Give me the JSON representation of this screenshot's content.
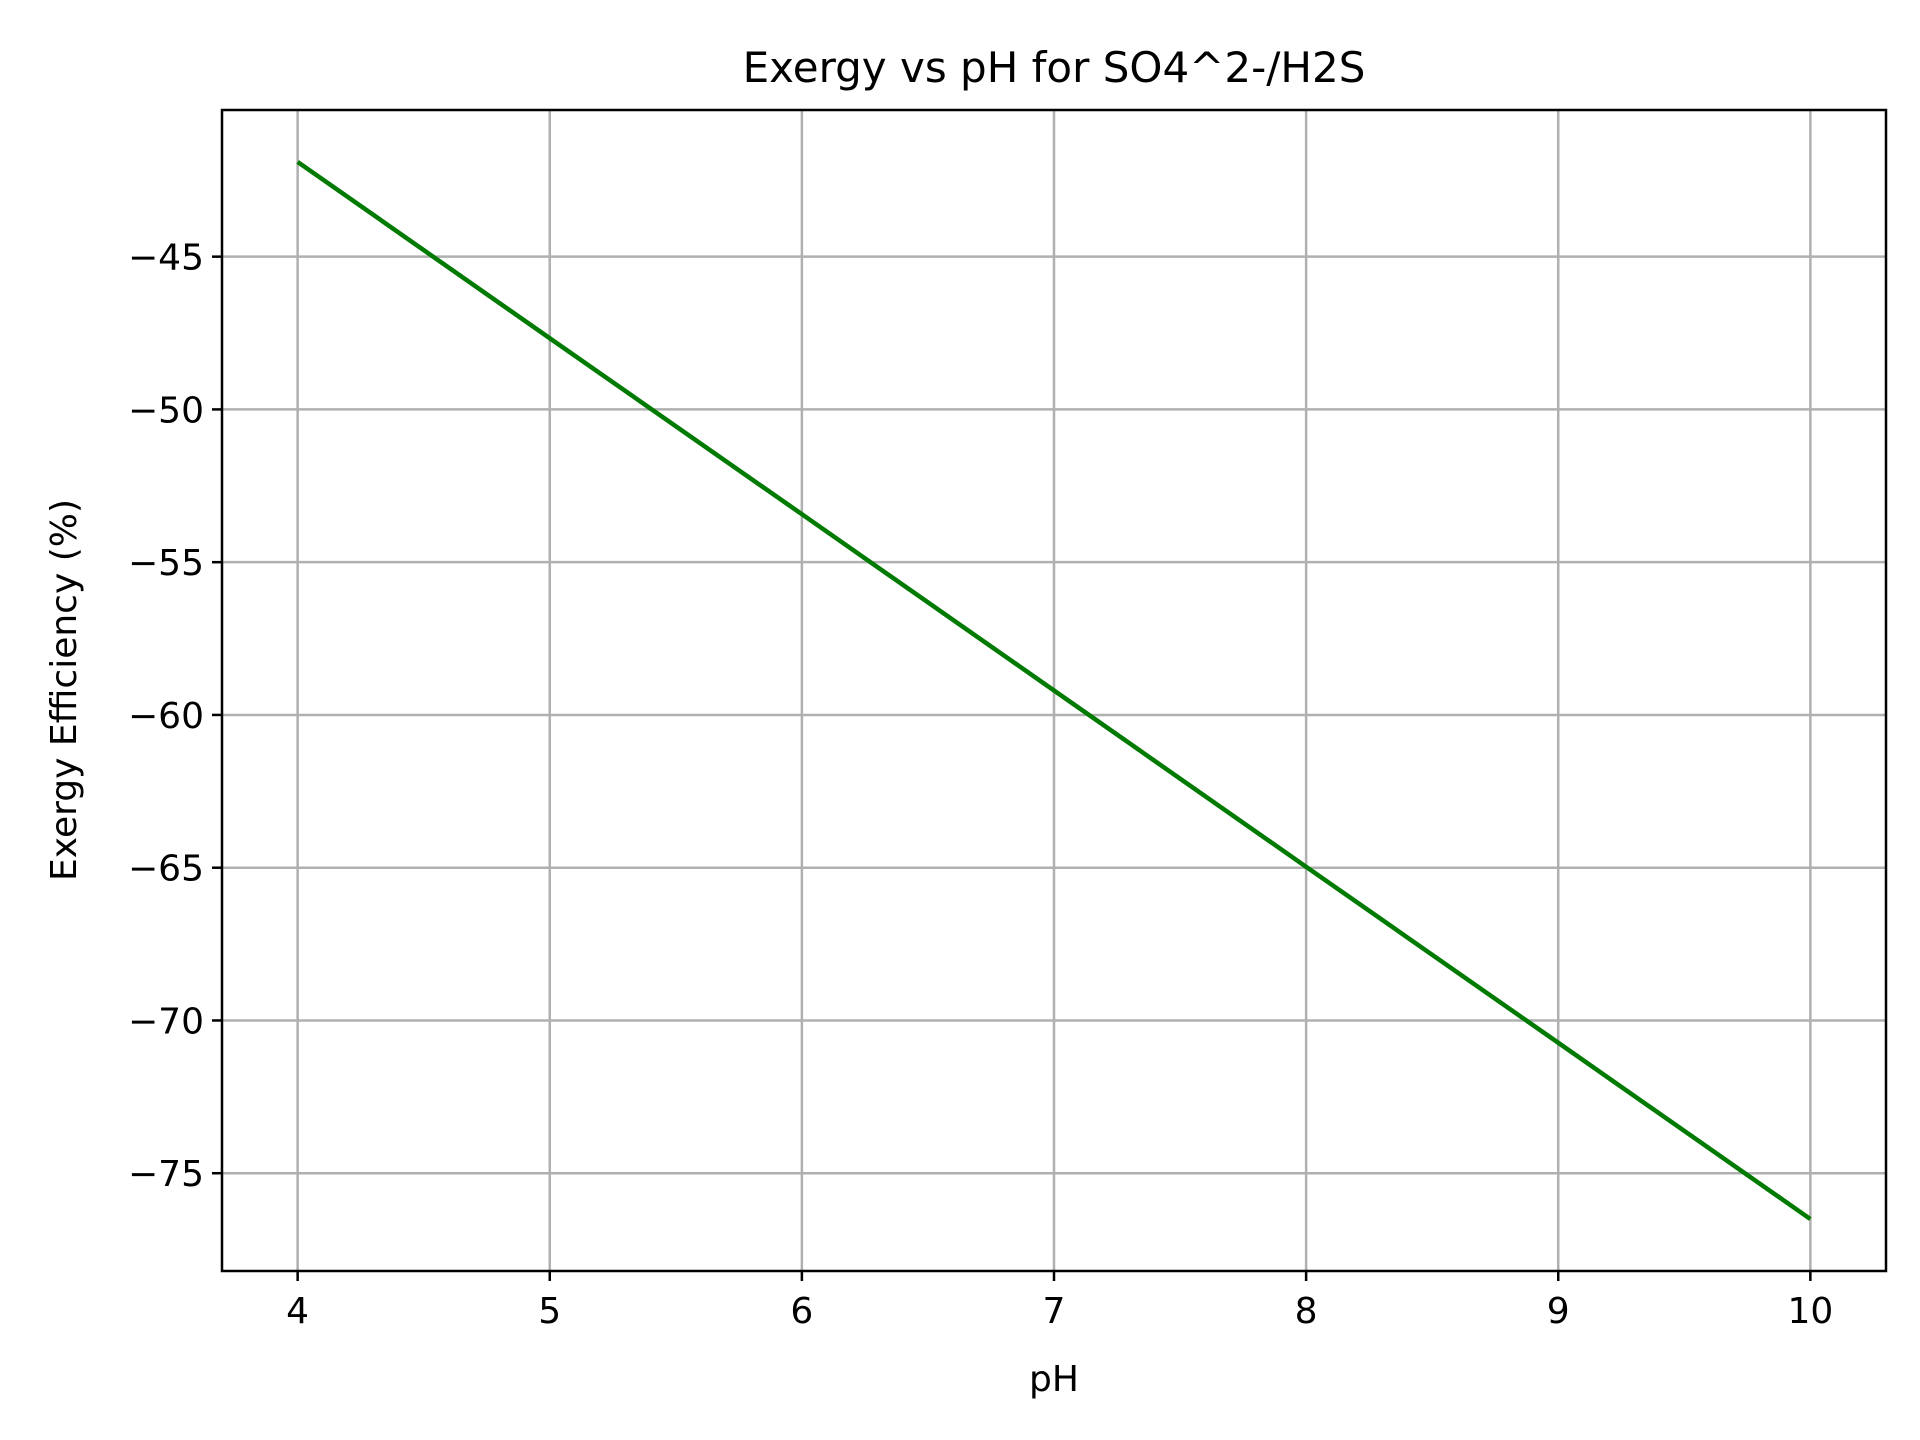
{
  "chart_data": {
    "type": "line",
    "title": "Exergy vs pH for SO4^2-/H2S",
    "xlabel": "pH",
    "ylabel": "Exergy Efficiency (%)",
    "xlim": [
      3.7,
      10.3
    ],
    "ylim": [
      -78.2,
      -40.2
    ],
    "xticks": [
      4,
      5,
      6,
      7,
      8,
      9,
      10
    ],
    "xtick_labels": [
      "4",
      "5",
      "6",
      "7",
      "8",
      "9",
      "10"
    ],
    "yticks": [
      -75,
      -70,
      -65,
      -60,
      -55,
      -50,
      -45
    ],
    "ytick_labels": [
      "−75",
      "−70",
      "−65",
      "−60",
      "−55",
      "−50",
      "−45"
    ],
    "grid": true,
    "series": [
      {
        "color": "#007a00",
        "x": [
          4,
          5,
          6,
          7,
          8,
          9,
          10
        ],
        "y": [
          -41.9,
          -47.67,
          -53.43,
          -59.2,
          -64.97,
          -70.73,
          -76.5
        ]
      }
    ]
  }
}
